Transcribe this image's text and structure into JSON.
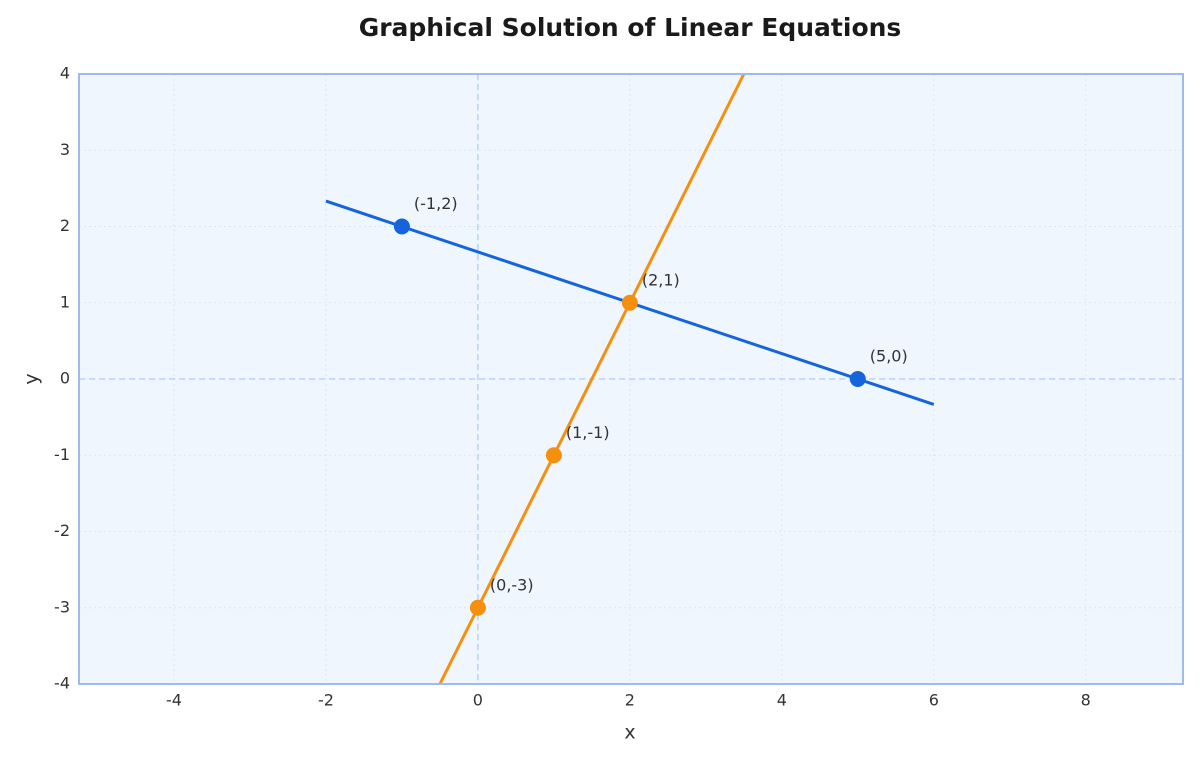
{
  "chart_data": {
    "type": "line",
    "title": "Graphical Solution of Linear Equations",
    "xlabel": "x",
    "ylabel": "y",
    "xlim": [
      -5.25,
      9.28
    ],
    "ylim": [
      -4,
      4
    ],
    "xticks": [
      -4,
      -2,
      0,
      2,
      4,
      6,
      8
    ],
    "yticks": [
      -4,
      -3,
      -2,
      -1,
      0,
      1,
      2,
      3,
      4
    ],
    "grid": true,
    "zero_lines": true,
    "series": [
      {
        "color": "#1464dc",
        "x": [
          -2,
          6
        ],
        "values": [
          2.333,
          -0.333
        ]
      },
      {
        "color": "#f5900f",
        "x": [
          -0.5,
          3.5
        ],
        "values": [
          -4,
          4
        ]
      }
    ],
    "points": [
      {
        "color": "#1464dc",
        "x": [
          -1,
          5
        ],
        "values": [
          2,
          0
        ],
        "value_labels": [
          "(-1,2)",
          "(5,0)"
        ]
      },
      {
        "color": "#f5900f",
        "x": [
          0,
          1,
          2
        ],
        "values": [
          -3,
          -1,
          1
        ],
        "value_labels": [
          "(0,-3)",
          "(1,-1)",
          "(2,1)"
        ]
      }
    ]
  }
}
